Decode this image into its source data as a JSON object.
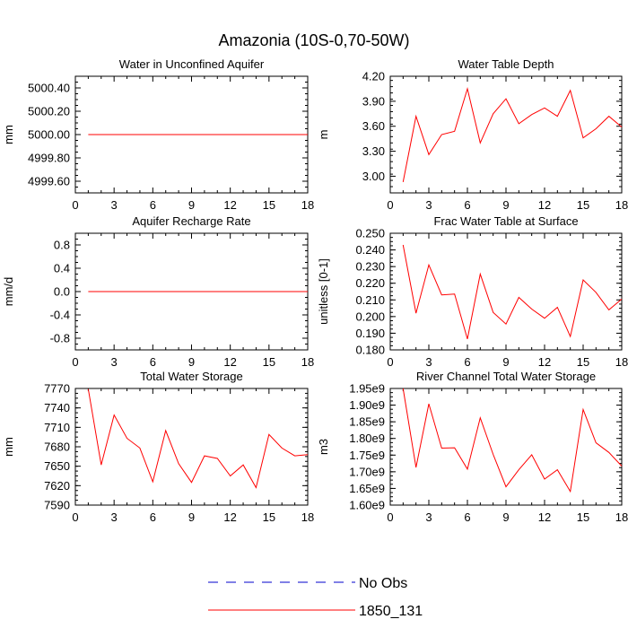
{
  "figure_title": "Amazonia (10S-0,70-50W)",
  "colors": {
    "model": "#ff0000",
    "obs": "#0000cc",
    "axis": "#000000"
  },
  "legend": {
    "entries": [
      {
        "label": "No Obs",
        "style": "dashed",
        "color": "#0000cc"
      },
      {
        "label": "1850_131",
        "style": "solid",
        "color": "#ff0000"
      }
    ]
  },
  "chart_data": [
    {
      "type": "line",
      "title": "Water in Unconfined Aquifer",
      "ylabel": "mm",
      "xlim": [
        0,
        18
      ],
      "xticks": [
        0,
        3,
        6,
        9,
        12,
        15,
        18
      ],
      "xtick_labels": [
        "0",
        "3",
        "6",
        "9",
        "12",
        "15",
        "18"
      ],
      "ylim": [
        4999.5,
        5000.5
      ],
      "yticks": [
        4999.6,
        4999.8,
        5000.0,
        5000.2,
        5000.4
      ],
      "ytick_labels": [
        "4999.60",
        "4999.80",
        "5000.00",
        "5000.20",
        "5000.40"
      ],
      "series": [
        {
          "name": "1850_131",
          "x": [
            1,
            18
          ],
          "values": [
            5000.0,
            5000.0
          ]
        }
      ]
    },
    {
      "type": "line",
      "title": "Water Table Depth",
      "ylabel": "m",
      "xlim": [
        0,
        18
      ],
      "xticks": [
        0,
        3,
        6,
        9,
        12,
        15,
        18
      ],
      "xtick_labels": [
        "0",
        "3",
        "6",
        "9",
        "12",
        "15",
        "18"
      ],
      "ylim": [
        2.8,
        4.2
      ],
      "yticks": [
        3.0,
        3.3,
        3.6,
        3.9,
        4.2
      ],
      "ytick_labels": [
        "3.00",
        "3.30",
        "3.60",
        "3.90",
        "4.20"
      ],
      "series": [
        {
          "name": "1850_131",
          "x": [
            1,
            2,
            3,
            4,
            5,
            6,
            7,
            8,
            9,
            10,
            11,
            12,
            13,
            14,
            15,
            16,
            17,
            18
          ],
          "values": [
            2.93,
            3.72,
            3.26,
            3.5,
            3.54,
            4.05,
            3.4,
            3.75,
            3.93,
            3.63,
            3.74,
            3.82,
            3.72,
            4.03,
            3.46,
            3.57,
            3.72,
            3.59
          ]
        }
      ]
    },
    {
      "type": "line",
      "title": "Aquifer Recharge Rate",
      "ylabel": "mm/d",
      "xlim": [
        0,
        18
      ],
      "xticks": [
        0,
        3,
        6,
        9,
        12,
        15,
        18
      ],
      "xtick_labels": [
        "0",
        "3",
        "6",
        "9",
        "12",
        "15",
        "18"
      ],
      "ylim": [
        -1.0,
        1.0
      ],
      "yticks": [
        -0.8,
        -0.4,
        0.0,
        0.4,
        0.8
      ],
      "ytick_labels": [
        "-0.8",
        "-0.4",
        "0.0",
        "0.4",
        "0.8"
      ],
      "series": [
        {
          "name": "1850_131",
          "x": [
            1,
            18
          ],
          "values": [
            0.0,
            0.0
          ]
        }
      ]
    },
    {
      "type": "line",
      "title": "Frac Water Table at Surface",
      "ylabel": "unitless [0-1]",
      "xlim": [
        0,
        18
      ],
      "xticks": [
        0,
        3,
        6,
        9,
        12,
        15,
        18
      ],
      "xtick_labels": [
        "0",
        "3",
        "6",
        "9",
        "12",
        "15",
        "18"
      ],
      "ylim": [
        0.18,
        0.25
      ],
      "yticks": [
        0.18,
        0.19,
        0.2,
        0.21,
        0.22,
        0.23,
        0.24,
        0.25
      ],
      "ytick_labels": [
        "0.180",
        "0.190",
        "0.200",
        "0.210",
        "0.220",
        "0.230",
        "0.240",
        "0.250"
      ],
      "series": [
        {
          "name": "1850_131",
          "x": [
            1,
            2,
            3,
            4,
            5,
            6,
            7,
            8,
            9,
            10,
            11,
            12,
            13,
            14,
            15,
            16,
            17,
            18
          ],
          "values": [
            0.243,
            0.202,
            0.231,
            0.213,
            0.2135,
            0.1865,
            0.2255,
            0.2025,
            0.1955,
            0.2115,
            0.2045,
            0.199,
            0.2055,
            0.188,
            0.222,
            0.2145,
            0.204,
            0.2105
          ]
        }
      ]
    },
    {
      "type": "line",
      "title": "Total Water Storage",
      "ylabel": "mm",
      "xlim": [
        0,
        18
      ],
      "xticks": [
        0,
        3,
        6,
        9,
        12,
        15,
        18
      ],
      "xtick_labels": [
        "0",
        "3",
        "6",
        "9",
        "12",
        "15",
        "18"
      ],
      "ylim": [
        7590,
        7770
      ],
      "yticks": [
        7590,
        7620,
        7650,
        7680,
        7710,
        7740,
        7770
      ],
      "ytick_labels": [
        "7590",
        "7620",
        "7650",
        "7680",
        "7710",
        "7740",
        "7770"
      ],
      "series": [
        {
          "name": "1850_131",
          "x": [
            1,
            2,
            3,
            4,
            5,
            6,
            7,
            8,
            9,
            10,
            11,
            12,
            13,
            14,
            15,
            16,
            17,
            18
          ],
          "values": [
            7769,
            7652,
            7729,
            7693,
            7678,
            7626,
            7705,
            7654,
            7625,
            7666,
            7662,
            7635,
            7652,
            7617,
            7699,
            7678,
            7666,
            7668
          ]
        }
      ]
    },
    {
      "type": "line",
      "title": "River Channel Total Water Storage",
      "ylabel": "m3",
      "xlim": [
        0,
        18
      ],
      "xticks": [
        0,
        3,
        6,
        9,
        12,
        15,
        18
      ],
      "xtick_labels": [
        "0",
        "3",
        "6",
        "9",
        "12",
        "15",
        "18"
      ],
      "ylim": [
        1600000000.0,
        1950000000.0
      ],
      "yticks": [
        1600000000.0,
        1650000000.0,
        1700000000.0,
        1750000000.0,
        1800000000.0,
        1850000000.0,
        1900000000.0,
        1950000000.0
      ],
      "ytick_labels": [
        "1.60e9",
        "1.65e9",
        "1.70e9",
        "1.75e9",
        "1.80e9",
        "1.85e9",
        "1.90e9",
        "1.95e9"
      ],
      "series": [
        {
          "name": "1850_131",
          "x": [
            1,
            2,
            3,
            4,
            5,
            6,
            7,
            8,
            9,
            10,
            11,
            12,
            13,
            14,
            15,
            16,
            17,
            18
          ],
          "values": [
            1950000000.0,
            1713000000.0,
            1904000000.0,
            1771000000.0,
            1772000000.0,
            1708000000.0,
            1862000000.0,
            1752000000.0,
            1655000000.0,
            1706000000.0,
            1751000000.0,
            1678000000.0,
            1706000000.0,
            1641000000.0,
            1887000000.0,
            1787000000.0,
            1758000000.0,
            1717000000.0
          ]
        }
      ]
    }
  ]
}
